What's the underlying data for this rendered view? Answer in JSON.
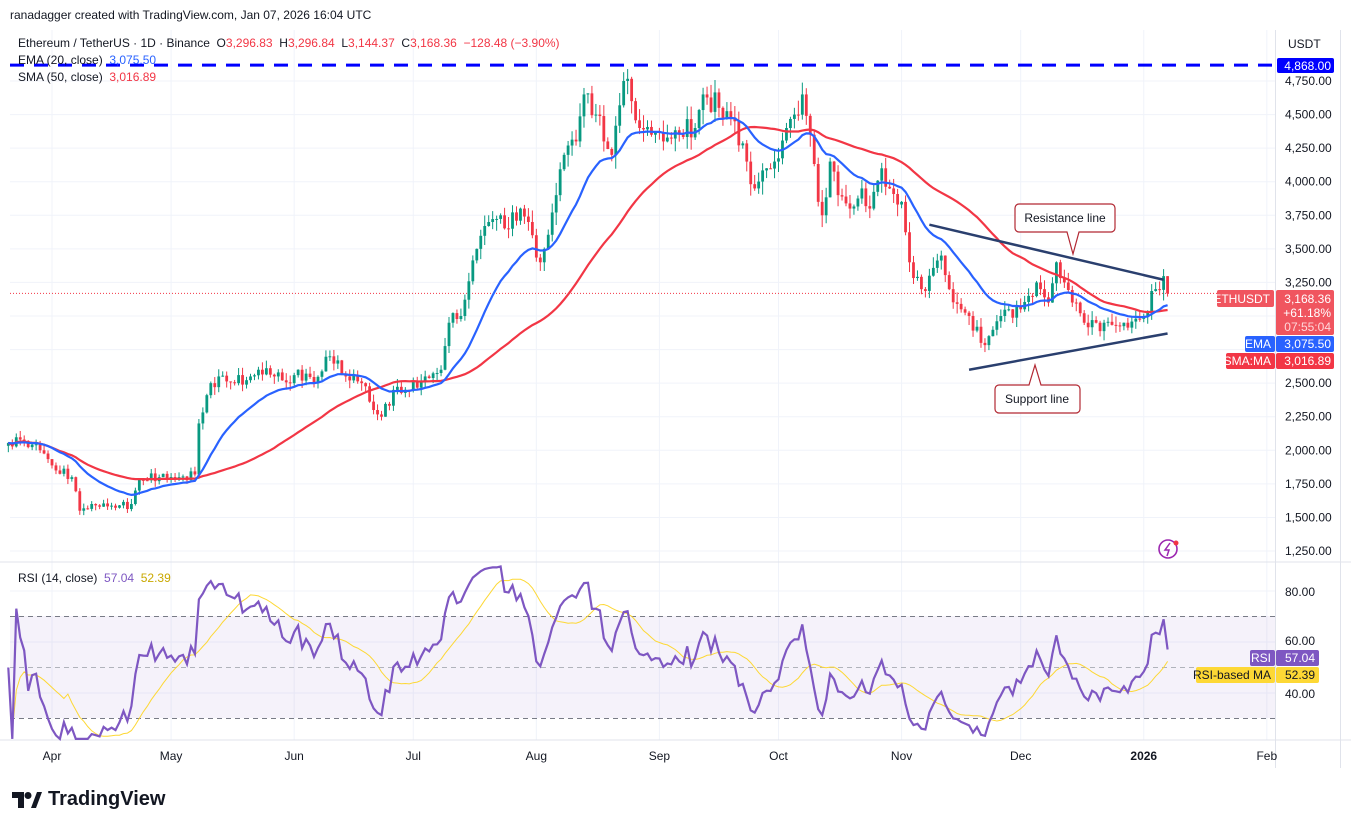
{
  "credit": "ranadagger created with TradingView.com, Jan 07, 2026 16:04 UTC",
  "legend": {
    "symbol": "Ethereum / TetherUS · 1D · Binance",
    "o_label": "O",
    "o": "3,296.83",
    "h_label": "H",
    "h": "3,296.84",
    "l_label": "L",
    "l": "3,144.37",
    "c_label": "C",
    "c": "3,168.36",
    "change": "−128.48 (−3.90%)",
    "ema_label": "EMA (20, close)",
    "ema_value": "3,075.50",
    "sma_label": "SMA (50, close)",
    "sma_value": "3,016.89"
  },
  "currency": "USDT",
  "price_tags": {
    "level": "4,868.00",
    "symbol": "ETHUSDT",
    "last": "3,168.36",
    "change_pct": "+61.18%",
    "countdown": "07:55:04",
    "ema": "EMA",
    "ema_value": "3,075.50",
    "sma": "SMA:MA",
    "sma_value": "3,016.89"
  },
  "rsi": {
    "label": "RSI (14, close)",
    "value": "57.04",
    "ma_value": "52.39",
    "tag": "RSI",
    "ma_tag": "RSI-based MA",
    "ticks": [
      "80.00",
      "60.00",
      "40.00"
    ]
  },
  "annotations": {
    "resistance": "Resistance line",
    "support": "Support line"
  },
  "logo": "TradingView",
  "colors": {
    "up": "#089981",
    "down": "#f23645",
    "ema": "#2962ff",
    "sma": "#f23645",
    "rsi": "#7e57c2",
    "rsi_ma": "#fdd835",
    "level": "#0000ff",
    "trendline": "#2a3f6e"
  },
  "chart_data": {
    "type": "candlestick",
    "title": "Ethereum / TetherUS · 1D · Binance",
    "ylim": [
      1150,
      4950
    ],
    "y_ticks": [
      4750,
      4500,
      4250,
      4000,
      3750,
      3500,
      3250,
      2500,
      2250,
      2000,
      1750,
      1500,
      1250
    ],
    "y_tick_labels": [
      "4,750.00",
      "4,500.00",
      "4,250.00",
      "4,000.00",
      "3,750.00",
      "3,500.00",
      "3,250.00",
      "2,500.00",
      "2,250.00",
      "2,000.00",
      "1,750.00",
      "1,500.00",
      "1,250.00"
    ],
    "x_tick_labels": [
      "Apr",
      "May",
      "Jun",
      "Jul",
      "Aug",
      "Sep",
      "Oct",
      "Nov",
      "Dec",
      "2026",
      "Feb"
    ],
    "x_tick_dates": [
      "2025-04-01",
      "2025-05-01",
      "2025-06-01",
      "2025-07-01",
      "2025-08-01",
      "2025-09-01",
      "2025-10-01",
      "2025-11-01",
      "2025-12-01",
      "2026-01-01",
      "2026-02-01"
    ],
    "horizontal_level": 4868,
    "approx_closes": [
      [
        "2025-03-21",
        2054
      ],
      [
        "2025-03-24",
        2080
      ],
      [
        "2025-03-29",
        2000
      ],
      [
        "2025-04-02",
        1850
      ],
      [
        "2025-04-06",
        1800
      ],
      [
        "2025-04-08",
        1550
      ],
      [
        "2025-04-11",
        1600
      ],
      [
        "2025-04-13",
        1580
      ],
      [
        "2025-04-18",
        1590
      ],
      [
        "2025-04-21",
        1600
      ],
      [
        "2025-04-23",
        1780
      ],
      [
        "2025-04-28",
        1800
      ],
      [
        "2025-05-03",
        1800
      ],
      [
        "2025-05-07",
        1820
      ],
      [
        "2025-05-08",
        2200
      ],
      [
        "2025-05-11",
        2500
      ],
      [
        "2025-05-13",
        2550
      ],
      [
        "2025-05-17",
        2500
      ],
      [
        "2025-05-21",
        2550
      ],
      [
        "2025-05-23",
        2600
      ],
      [
        "2025-05-27",
        2550
      ],
      [
        "2025-05-31",
        2500
      ],
      [
        "2025-06-02",
        2600
      ],
      [
        "2025-06-06",
        2500
      ],
      [
        "2025-06-10",
        2700
      ],
      [
        "2025-06-14",
        2550
      ],
      [
        "2025-06-18",
        2500
      ],
      [
        "2025-06-21",
        2300
      ],
      [
        "2025-06-23",
        2250
      ],
      [
        "2025-06-26",
        2450
      ],
      [
        "2025-06-30",
        2450
      ],
      [
        "2025-07-04",
        2550
      ],
      [
        "2025-07-08",
        2600
      ],
      [
        "2025-07-10",
        2950
      ],
      [
        "2025-07-13",
        3000
      ],
      [
        "2025-07-17",
        3500
      ],
      [
        "2025-07-20",
        3700
      ],
      [
        "2025-07-23",
        3750
      ],
      [
        "2025-07-25",
        3650
      ],
      [
        "2025-07-28",
        3800
      ],
      [
        "2025-07-30",
        3700
      ],
      [
        "2025-08-02",
        3400
      ],
      [
        "2025-08-03",
        3500
      ],
      [
        "2025-08-06",
        3900
      ],
      [
        "2025-08-08",
        4200
      ],
      [
        "2025-08-11",
        4300
      ],
      [
        "2025-08-13",
        4650
      ],
      [
        "2025-08-16",
        4500
      ],
      [
        "2025-08-18",
        4300
      ],
      [
        "2025-08-20",
        4200
      ],
      [
        "2025-08-23",
        4750
      ],
      [
        "2025-08-25",
        4600
      ],
      [
        "2025-08-27",
        4400
      ],
      [
        "2025-08-30",
        4350
      ],
      [
        "2025-09-02",
        4300
      ],
      [
        "2025-09-06",
        4350
      ],
      [
        "2025-09-10",
        4400
      ],
      [
        "2025-09-12",
        4650
      ],
      [
        "2025-09-16",
        4550
      ],
      [
        "2025-09-20",
        4450
      ],
      [
        "2025-09-23",
        4150
      ],
      [
        "2025-09-25",
        3950
      ],
      [
        "2025-09-28",
        4100
      ],
      [
        "2025-09-30",
        4150
      ],
      [
        "2025-10-03",
        4400
      ],
      [
        "2025-10-05",
        4500
      ],
      [
        "2025-10-07",
        4650
      ],
      [
        "2025-10-09",
        4350
      ],
      [
        "2025-10-11",
        3850
      ],
      [
        "2025-10-12",
        3750
      ],
      [
        "2025-10-14",
        4150
      ],
      [
        "2025-10-16",
        3900
      ],
      [
        "2025-10-19",
        3800
      ],
      [
        "2025-10-22",
        3950
      ],
      [
        "2025-10-24",
        3800
      ],
      [
        "2025-10-27",
        4100
      ],
      [
        "2025-10-29",
        3950
      ],
      [
        "2025-11-01",
        3850
      ],
      [
        "2025-11-03",
        3400
      ],
      [
        "2025-11-06",
        3200
      ],
      [
        "2025-11-08",
        3300
      ],
      [
        "2025-11-11",
        3450
      ],
      [
        "2025-11-13",
        3200
      ],
      [
        "2025-11-16",
        3050
      ],
      [
        "2025-11-18",
        3000
      ],
      [
        "2025-11-21",
        2800
      ],
      [
        "2025-11-23",
        2850
      ],
      [
        "2025-11-26",
        3000
      ],
      [
        "2025-11-28",
        3050
      ],
      [
        "2025-12-01",
        3050
      ],
      [
        "2025-12-03",
        3150
      ],
      [
        "2025-12-06",
        3200
      ],
      [
        "2025-12-08",
        3100
      ],
      [
        "2025-12-10",
        3400
      ],
      [
        "2025-12-12",
        3250
      ],
      [
        "2025-12-15",
        3100
      ],
      [
        "2025-12-17",
        2950
      ],
      [
        "2025-12-20",
        2950
      ],
      [
        "2025-12-22",
        2950
      ],
      [
        "2025-12-25",
        2930
      ],
      [
        "2025-12-27",
        2950
      ],
      [
        "2025-12-30",
        2980
      ],
      [
        "2026-01-01",
        3000
      ],
      [
        "2026-01-04",
        3200
      ],
      [
        "2026-01-06",
        3296.83
      ],
      [
        "2026-01-07",
        3168.36
      ]
    ],
    "last_candle": {
      "date": "2026-01-07",
      "open": 3296.83,
      "high": 3296.84,
      "low": 3144.37,
      "close": 3168.36
    },
    "ema20_last": 3075.5,
    "sma50_last": 3016.89,
    "rsi14_last": 57.04,
    "rsi_ma_last": 52.39,
    "rsi_ylim": [
      20,
      90
    ],
    "rsi_bands": [
      70,
      30
    ],
    "trendlines": {
      "resistance": [
        [
          "2025-11-08",
          3680
        ],
        [
          "2026-01-06",
          3270
        ]
      ],
      "support": [
        [
          "2025-11-18",
          2600
        ],
        [
          "2026-01-07",
          2870
        ]
      ]
    }
  }
}
